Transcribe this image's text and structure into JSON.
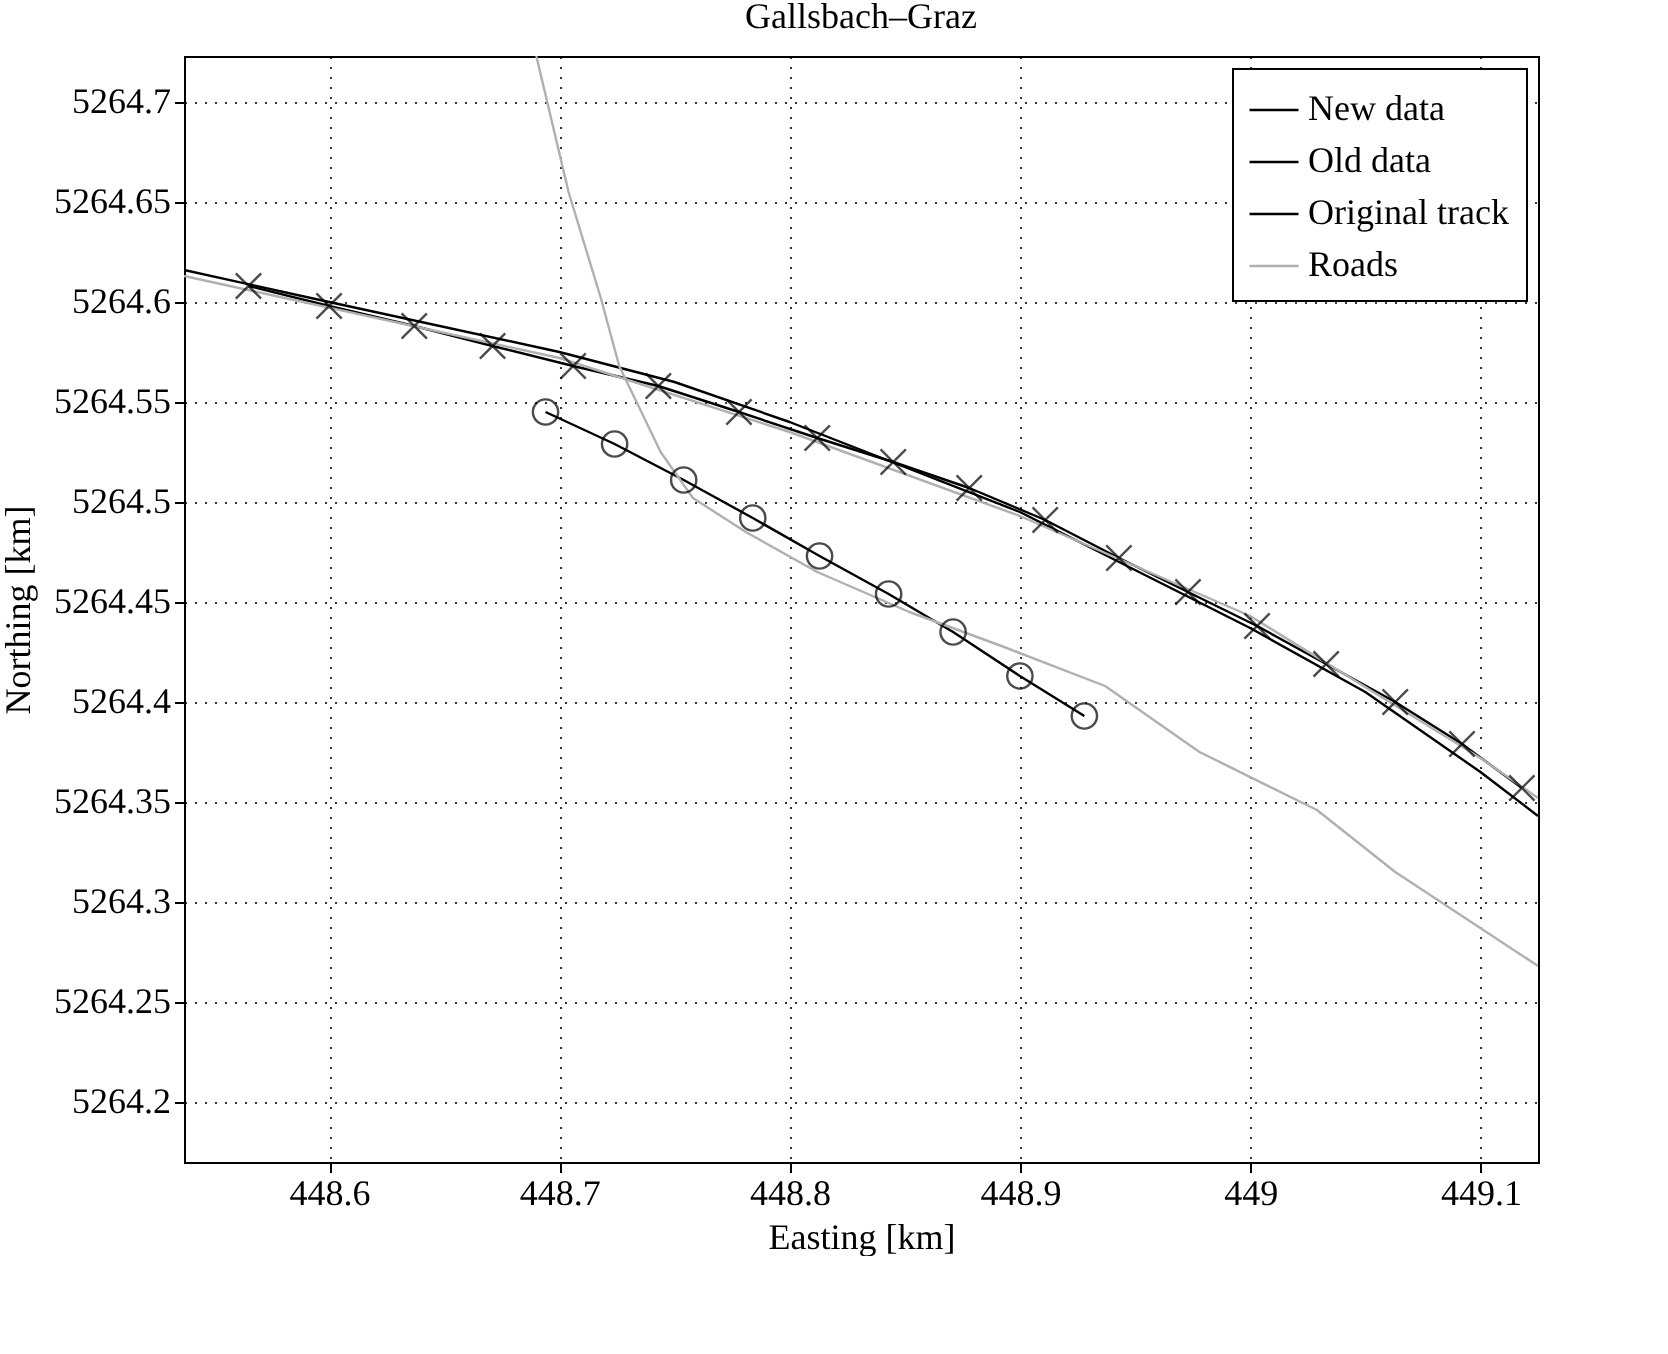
{
  "chart_data": {
    "type": "line",
    "title": "Gallsbach–Graz",
    "xlabel": "Easting [km]",
    "ylabel": "Northing [km]",
    "xlim": [
      448.537,
      449.125
    ],
    "ylim": [
      5264.17,
      5264.723
    ],
    "xticks": [
      448.6,
      448.7,
      448.8,
      448.9,
      449,
      449.1
    ],
    "yticks": [
      5264.2,
      5264.25,
      5264.3,
      5264.35,
      5264.4,
      5264.45,
      5264.5,
      5264.55,
      5264.6,
      5264.65,
      5264.7
    ],
    "grid": true,
    "legend": "top right",
    "line_style": "solid",
    "series": [
      {
        "name": "New data",
        "color": "#000000",
        "marker": "circle",
        "x": [
          448.694,
          448.724,
          448.754,
          448.784,
          448.813,
          448.843,
          448.871,
          448.9,
          448.928
        ],
        "values": [
          5264.545,
          5264.529,
          5264.511,
          5264.492,
          5264.473,
          5264.454,
          5264.435,
          5264.413,
          5264.393
        ]
      },
      {
        "name": "Old data",
        "color": "#000000",
        "marker": "cross",
        "x": [
          448.565,
          448.6,
          448.637,
          448.671,
          448.706,
          448.743,
          448.778,
          448.812,
          448.845,
          448.878,
          448.911,
          448.943,
          448.973,
          449.003,
          449.033,
          449.063,
          449.092,
          449.118
        ],
        "values": [
          5264.608,
          5264.598,
          5264.588,
          5264.578,
          5264.568,
          5264.558,
          5264.545,
          5264.532,
          5264.52,
          5264.507,
          5264.491,
          5264.472,
          5264.455,
          5264.438,
          5264.419,
          5264.4,
          5264.379,
          5264.357
        ]
      },
      {
        "name": "Original track",
        "color": "#000000",
        "marker": "none",
        "x": [
          448.537,
          448.6,
          448.7,
          448.75,
          448.8,
          448.9,
          449.0,
          449.05,
          449.1,
          449.125
        ],
        "values": [
          5264.616,
          5264.6,
          5264.575,
          5264.56,
          5264.54,
          5264.495,
          5264.437,
          5264.405,
          5264.365,
          5264.343
        ]
      },
      {
        "name": "Roads",
        "color": "#b0b0b0",
        "marker": "none",
        "x": [
          448.537,
          448.7,
          448.8,
          448.9,
          449.0,
          449.1,
          449.125,
          null,
          448.69,
          448.704,
          448.718,
          448.726,
          448.744,
          448.758,
          448.781,
          448.812,
          448.852,
          448.892,
          448.937,
          448.978,
          449.029,
          449.063,
          449.125
        ],
        "values": [
          5264.613,
          5264.572,
          5264.535,
          5264.493,
          5264.443,
          5264.372,
          5264.352,
          null,
          5264.723,
          5264.655,
          5264.602,
          5264.568,
          5264.525,
          5264.502,
          5264.485,
          5264.465,
          5264.445,
          5264.428,
          5264.408,
          5264.375,
          5264.346,
          5264.315,
          5264.268
        ]
      }
    ]
  }
}
